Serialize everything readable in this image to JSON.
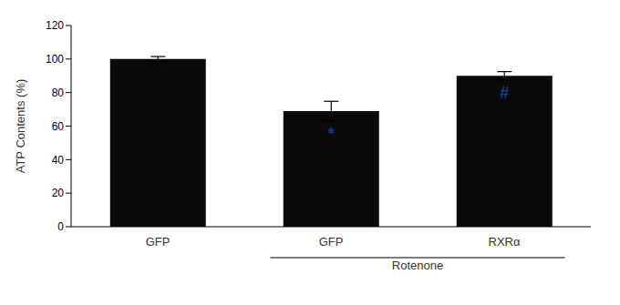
{
  "chart_data": {
    "type": "bar",
    "categories": [
      "GFP",
      "GFP",
      "RXRα"
    ],
    "values": [
      100.0,
      69.0,
      90.0
    ],
    "errors": [
      1.5,
      5.8,
      2.5
    ],
    "color": "#0a0a0a",
    "ylabel": "ATP Contents (%)",
    "ylim": [
      0,
      120
    ],
    "yticks": [
      0,
      20,
      40,
      60,
      80,
      100,
      120
    ],
    "grid": false,
    "legend": false,
    "annotations": [
      {
        "text": "*",
        "bar": 1,
        "color": "#1a3a8a"
      },
      {
        "text": "#",
        "bar": 2,
        "color": "#1a3a8a"
      },
      {
        "text": "Rotenone",
        "bars": [
          1,
          2
        ]
      }
    ]
  }
}
